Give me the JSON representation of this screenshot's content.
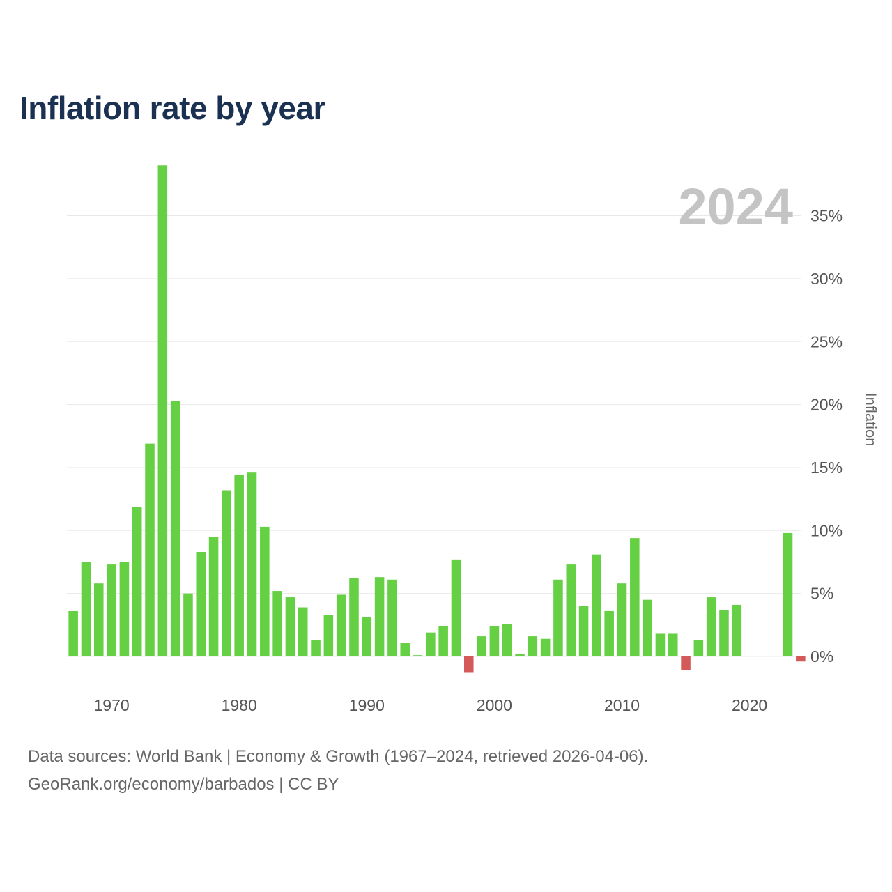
{
  "title": "Inflation rate by year",
  "current_year_label": "2024",
  "chart_data": {
    "type": "bar",
    "title": "Inflation rate by year",
    "xlabel": "",
    "ylabel": "Inflation",
    "ylim": [
      -2,
      39
    ],
    "yticks": [
      0,
      5,
      10,
      15,
      20,
      25,
      30,
      35
    ],
    "ytick_labels": [
      "0%",
      "5%",
      "10%",
      "15%",
      "20%",
      "25%",
      "30%",
      "35%"
    ],
    "xticks": [
      1970,
      1980,
      1990,
      2000,
      2010,
      2020
    ],
    "xtick_labels": [
      "1970",
      "1980",
      "1990",
      "2000",
      "2010",
      "2020"
    ],
    "x_range": [
      1966.5,
      2024.5
    ],
    "y_axis_side": "right",
    "categories": [
      1967,
      1968,
      1969,
      1970,
      1971,
      1972,
      1973,
      1974,
      1975,
      1976,
      1977,
      1978,
      1979,
      1980,
      1981,
      1982,
      1983,
      1984,
      1985,
      1986,
      1987,
      1988,
      1989,
      1990,
      1991,
      1992,
      1993,
      1994,
      1995,
      1996,
      1997,
      1998,
      1999,
      2000,
      2001,
      2002,
      2003,
      2004,
      2005,
      2006,
      2007,
      2008,
      2009,
      2010,
      2011,
      2012,
      2013,
      2014,
      2015,
      2016,
      2017,
      2018,
      2019,
      2020,
      2021,
      2022,
      2023,
      2024
    ],
    "values": [
      3.6,
      7.5,
      5.8,
      7.3,
      7.5,
      11.9,
      16.9,
      39.0,
      20.3,
      5.0,
      8.3,
      9.5,
      13.2,
      14.4,
      14.6,
      10.3,
      5.2,
      4.7,
      3.9,
      1.3,
      3.3,
      4.9,
      6.2,
      3.1,
      6.3,
      6.1,
      1.1,
      0.1,
      1.9,
      2.4,
      7.7,
      -1.3,
      1.6,
      2.4,
      2.6,
      0.2,
      1.6,
      1.4,
      6.1,
      7.3,
      4.0,
      8.1,
      3.6,
      5.8,
      9.4,
      4.5,
      1.8,
      1.8,
      -1.1,
      1.3,
      4.7,
      3.7,
      4.1,
      null,
      null,
      null,
      9.8,
      -0.4
    ],
    "positive_color": "#66d044",
    "negative_color": "#d45a5a"
  },
  "footer": {
    "line1": "Data sources: World Bank | Economy & Growth (1967–2024, retrieved 2026-04-06).",
    "line2": "GeoRank.org/economy/barbados | CC BY"
  }
}
